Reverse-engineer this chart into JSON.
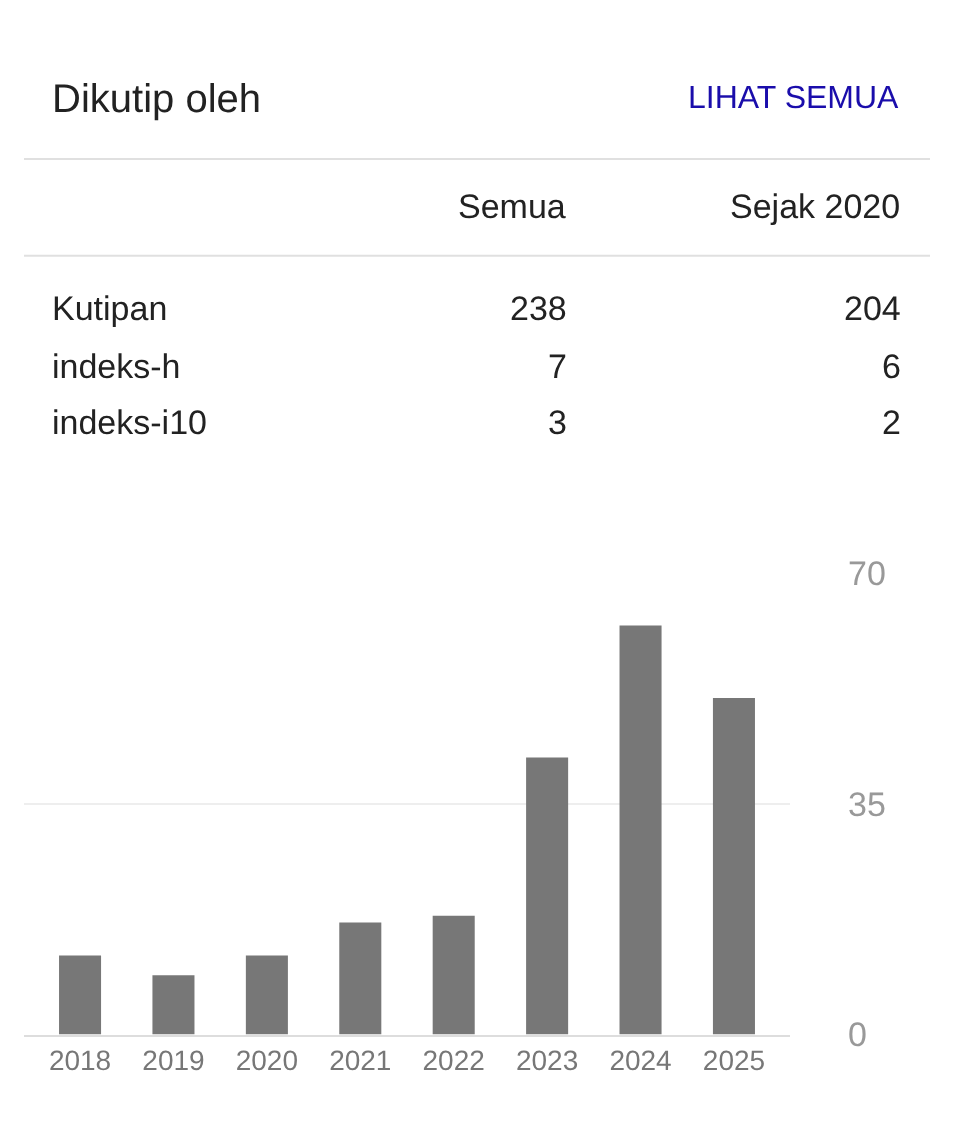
{
  "chart_data": [
    {
      "type": "other",
      "title": "Dikutip oleh",
      "annotations": [
        "LIHAT SEMUA",
        "Semua",
        "Sejak 2020",
        "Kutipan",
        "238",
        "204",
        "indeks-h",
        "7",
        "6",
        "indeks-i10",
        "3",
        "2"
      ]
    },
    {
      "type": "bar",
      "categories": [
        "2018",
        "2019",
        "2020",
        "2021",
        "2022",
        "2023",
        "2024",
        "2025"
      ],
      "values": [
        12,
        9,
        12,
        17,
        18,
        42,
        62,
        51
      ],
      "color": "#777777",
      "ylim": [
        0,
        70
      ],
      "yticks": [
        0,
        35,
        70
      ],
      "grid": "y"
    }
  ]
}
